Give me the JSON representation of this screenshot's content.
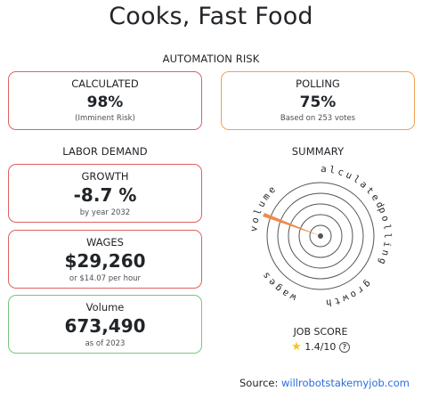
{
  "title": "Cooks, Fast Food",
  "automation_risk": {
    "heading": "AUTOMATION RISK",
    "calculated": {
      "label": "CALCULATED",
      "value": "98%",
      "sub": "(Imminent Risk)"
    },
    "polling": {
      "label": "POLLING",
      "value": "75%",
      "sub": "Based on 253 votes"
    }
  },
  "labor_demand": {
    "heading": "LABOR DEMAND",
    "growth": {
      "label": "GROWTH",
      "value": "-8.7 %",
      "sub": "by year 2032"
    },
    "wages": {
      "label": "WAGES",
      "value": "$29,260",
      "sub": "or $14.07 per hour"
    },
    "volume": {
      "label": "Volume",
      "value": "673,490",
      "sub": "as of 2023"
    }
  },
  "summary": {
    "heading": "SUMMARY",
    "axes": [
      "calculated",
      "polling",
      "growth",
      "wages",
      "volume"
    ],
    "pointer_color": "#f08a4b",
    "score_label": "JOB SCORE",
    "score": "1.4/10"
  },
  "source": {
    "label": "Source:",
    "link": "willrobotstakemyjob.com"
  }
}
